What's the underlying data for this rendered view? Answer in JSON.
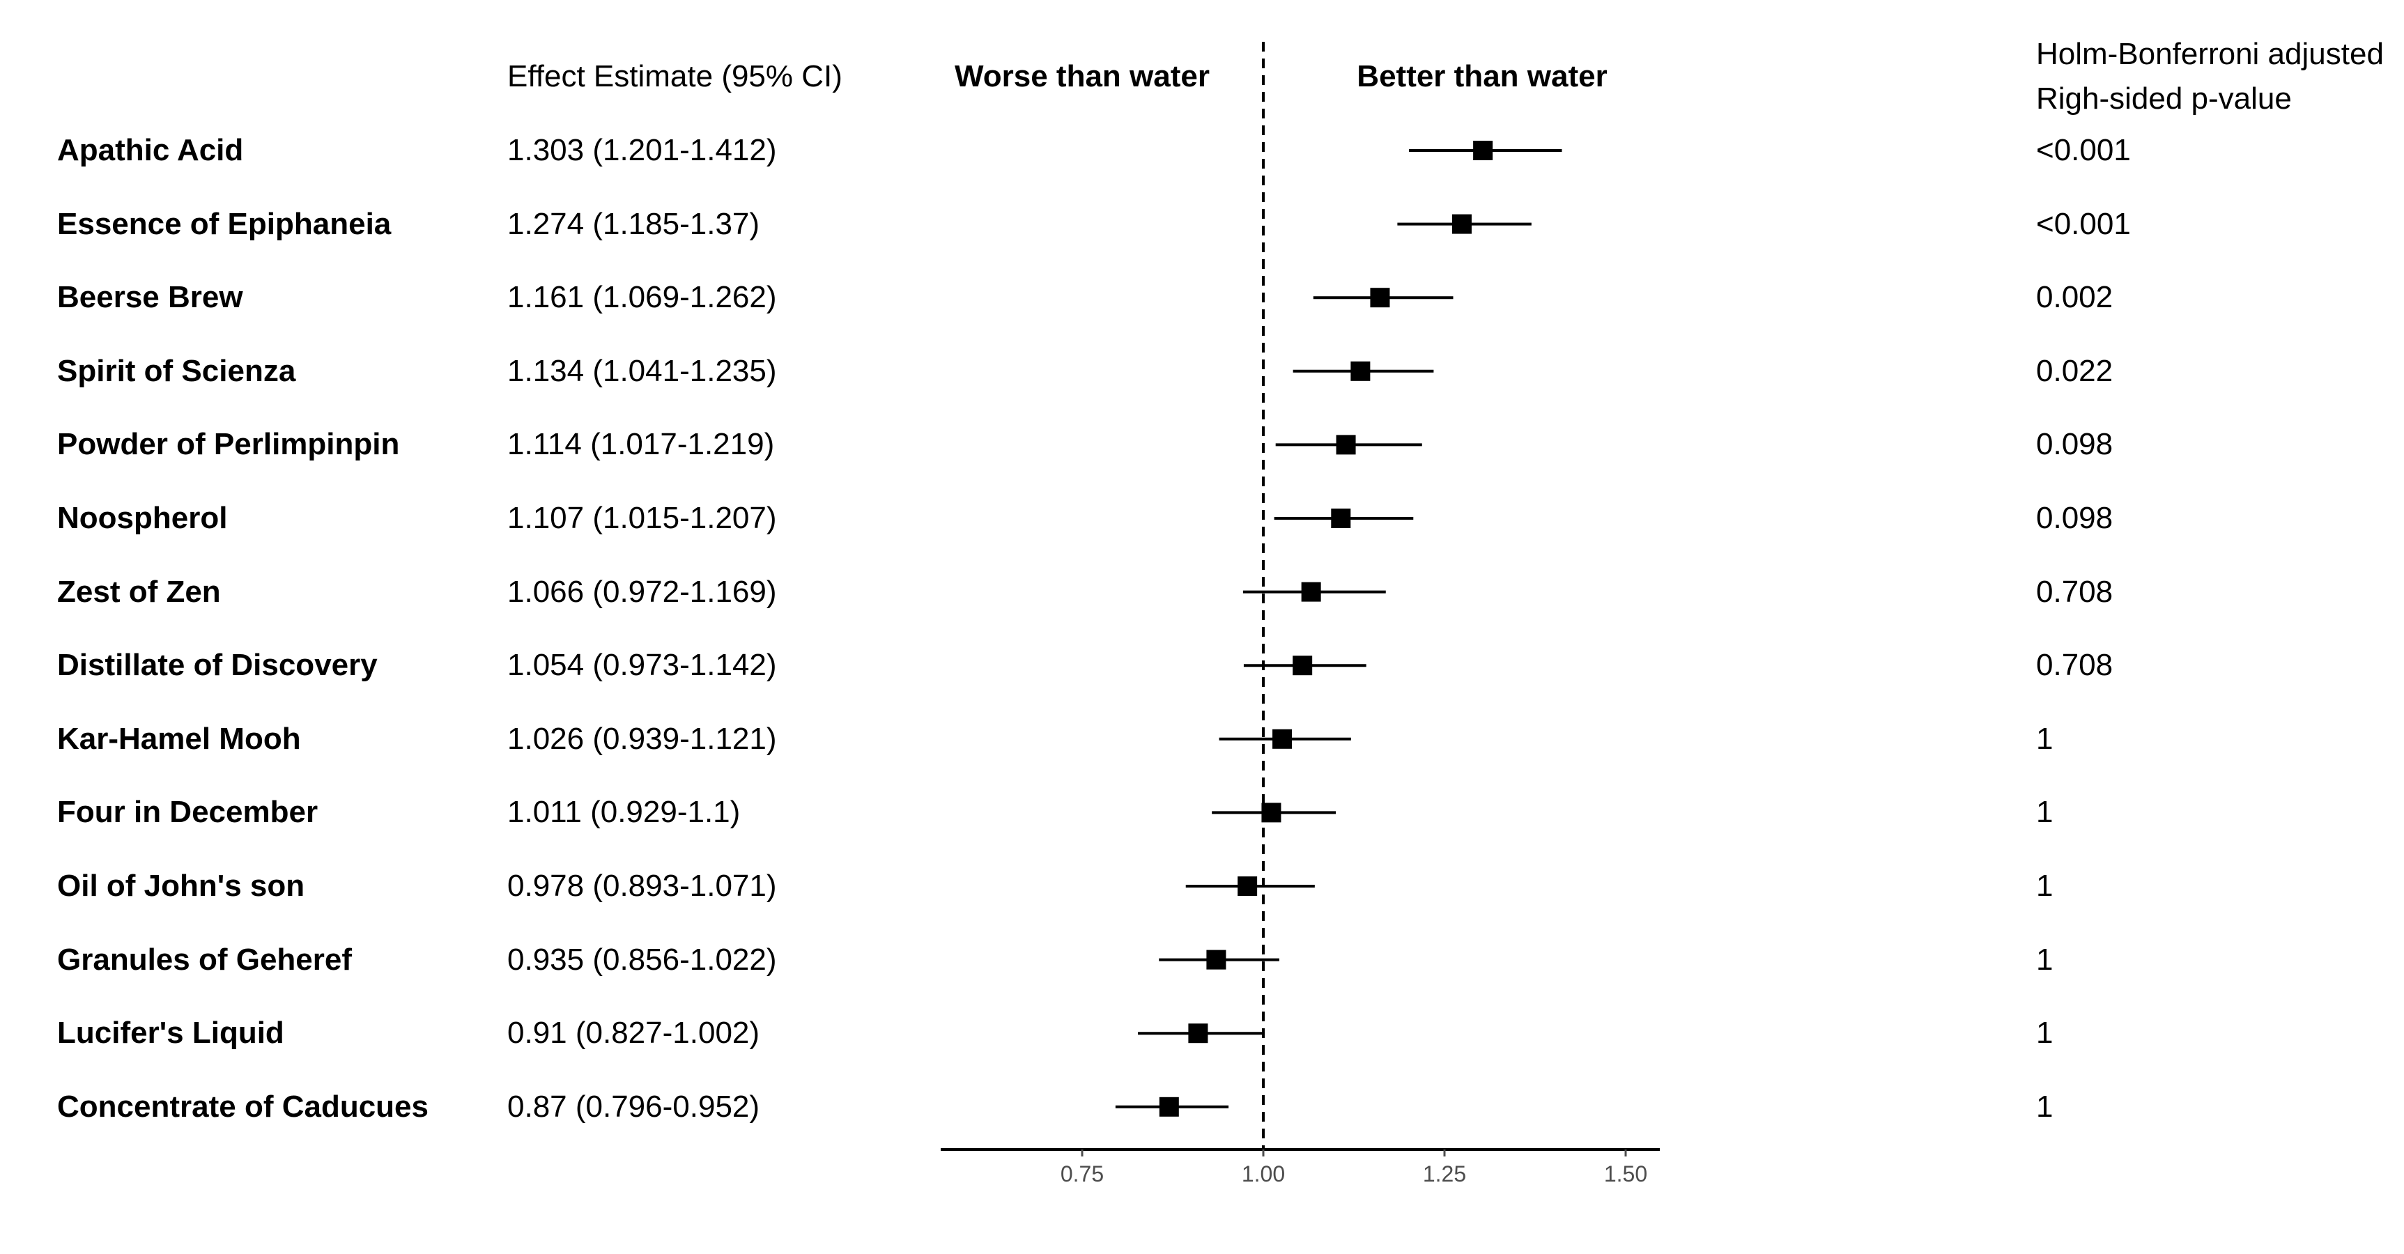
{
  "headers": {
    "estimate": "Effect Estimate (95% CI)",
    "worse": "Worse than water",
    "better": "Better than water",
    "pvalue_line1": "Holm-Bonferroni adjusted",
    "pvalue_line2": "Righ-sided p-value"
  },
  "chart_data": {
    "type": "forest",
    "title": "",
    "xlabel": "",
    "reference_line": 1.0,
    "xlim": [
      0.56,
      1.55
    ],
    "xticks": [
      0.75,
      1.0,
      1.25,
      1.5
    ],
    "xtick_labels": [
      "0.75",
      "1.00",
      "1.25",
      "1.50"
    ],
    "grid": false,
    "rows": [
      {
        "label": "Apathic Acid",
        "estimate": 1.303,
        "lower": 1.201,
        "upper": 1.412,
        "estimate_text": "1.303 (1.201-1.412)",
        "p_value": "<0.001"
      },
      {
        "label": "Essence of Epiphaneia",
        "estimate": 1.274,
        "lower": 1.185,
        "upper": 1.37,
        "estimate_text": "1.274 (1.185-1.37)",
        "p_value": "<0.001"
      },
      {
        "label": "Beerse Brew",
        "estimate": 1.161,
        "lower": 1.069,
        "upper": 1.262,
        "estimate_text": "1.161 (1.069-1.262)",
        "p_value": "0.002"
      },
      {
        "label": "Spirit of Scienza",
        "estimate": 1.134,
        "lower": 1.041,
        "upper": 1.235,
        "estimate_text": "1.134 (1.041-1.235)",
        "p_value": "0.022"
      },
      {
        "label": "Powder of Perlimpinpin",
        "estimate": 1.114,
        "lower": 1.017,
        "upper": 1.219,
        "estimate_text": "1.114 (1.017-1.219)",
        "p_value": "0.098"
      },
      {
        "label": "Noospherol",
        "estimate": 1.107,
        "lower": 1.015,
        "upper": 1.207,
        "estimate_text": "1.107 (1.015-1.207)",
        "p_value": "0.098"
      },
      {
        "label": "Zest of Zen",
        "estimate": 1.066,
        "lower": 0.972,
        "upper": 1.169,
        "estimate_text": "1.066 (0.972-1.169)",
        "p_value": "0.708"
      },
      {
        "label": "Distillate of Discovery",
        "estimate": 1.054,
        "lower": 0.973,
        "upper": 1.142,
        "estimate_text": "1.054 (0.973-1.142)",
        "p_value": "0.708"
      },
      {
        "label": "Kar-Hamel Mooh",
        "estimate": 1.026,
        "lower": 0.939,
        "upper": 1.121,
        "estimate_text": "1.026 (0.939-1.121)",
        "p_value": "1"
      },
      {
        "label": "Four in December",
        "estimate": 1.011,
        "lower": 0.929,
        "upper": 1.1,
        "estimate_text": "1.011 (0.929-1.1)",
        "p_value": "1"
      },
      {
        "label": "Oil of John's son",
        "estimate": 0.978,
        "lower": 0.893,
        "upper": 1.071,
        "estimate_text": "0.978 (0.893-1.071)",
        "p_value": "1"
      },
      {
        "label": "Granules of Geheref",
        "estimate": 0.935,
        "lower": 0.856,
        "upper": 1.022,
        "estimate_text": "0.935 (0.856-1.022)",
        "p_value": "1"
      },
      {
        "label": "Lucifer's Liquid",
        "estimate": 0.91,
        "lower": 0.827,
        "upper": 1.002,
        "estimate_text": "0.91 (0.827-1.002)",
        "p_value": "1"
      },
      {
        "label": "Concentrate of Caducues",
        "estimate": 0.87,
        "lower": 0.796,
        "upper": 0.952,
        "estimate_text": "0.87 (0.796-0.952)",
        "p_value": "1"
      }
    ],
    "colors": {
      "marker": "#000000",
      "line": "#000000",
      "ticks": "#4d4d4d"
    }
  }
}
